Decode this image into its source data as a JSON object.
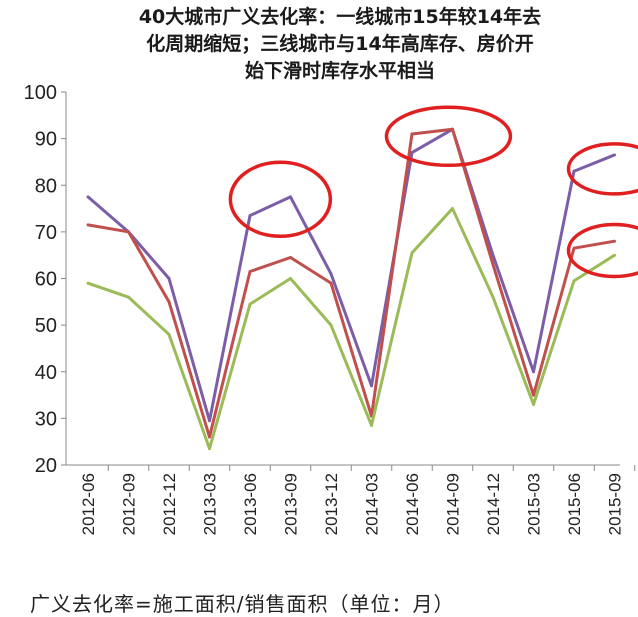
{
  "title_lines": [
    "40大城市广义去化率：一线城市15年较14年去",
    "化周期缩短；三线城市与14年高库存、房价开",
    "始下滑时库存水平相当"
  ],
  "footnote": "广义去化率=施工面积/销售面积（单位：月）",
  "chart_data": {
    "type": "line",
    "title": "40大城市广义去化率：一线城市15年较14年去化周期缩短；三线城市与14年高库存、房价开始下滑时库存水平相当",
    "categories": [
      "2012-06",
      "2012-09",
      "2012-12",
      "2013-03",
      "2013-06",
      "2013-09",
      "2013-12",
      "2014-03",
      "2014-06",
      "2014-09",
      "2014-12",
      "2015-03",
      "2015-06",
      "2015-09"
    ],
    "ylim": [
      20,
      100
    ],
    "yticks": [
      20,
      30,
      40,
      50,
      60,
      70,
      80,
      90,
      100
    ],
    "grid": false,
    "legend": "none",
    "series": [
      {
        "color": "#7b5ea7",
        "values": [
          77.5,
          70,
          60,
          29.5,
          73.5,
          77.5,
          61,
          37,
          87,
          92,
          65,
          40,
          83,
          86.5
        ]
      },
      {
        "color": "#c0504d",
        "values": [
          71.5,
          70,
          55,
          26,
          61.5,
          64.5,
          59,
          30.5,
          91,
          92,
          63,
          35,
          66.5,
          68
        ]
      },
      {
        "color": "#9bbb59",
        "values": [
          59,
          56,
          48,
          23.5,
          54.5,
          60,
          50,
          28.5,
          65.5,
          75,
          56,
          33,
          59.5,
          65
        ]
      }
    ],
    "annotations": [
      {
        "shape": "ellipse",
        "color": "#e02020",
        "cx_index": 4.75,
        "cy_value": 77
      },
      {
        "shape": "ellipse",
        "color": "#e02020",
        "cx_index": 8.9,
        "cy_value": 90.5
      },
      {
        "shape": "ellipse",
        "color": "#e02020",
        "cx_index": 13.0,
        "cy_value": 83.5
      },
      {
        "shape": "ellipse",
        "color": "#e02020",
        "cx_index": 13.0,
        "cy_value": 66
      }
    ]
  }
}
